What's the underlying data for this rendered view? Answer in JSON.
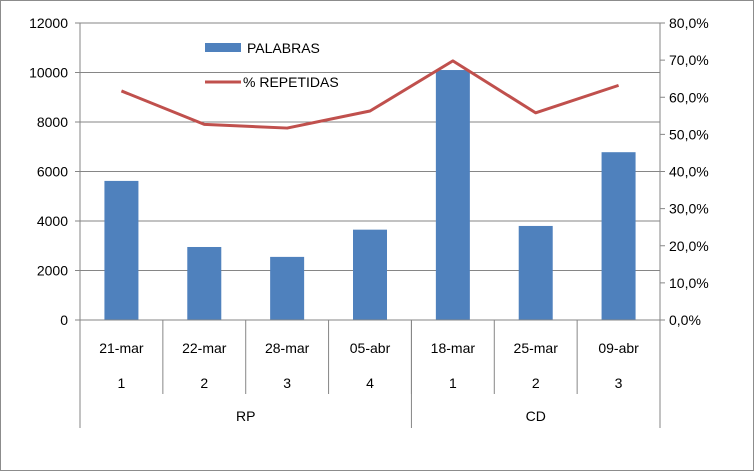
{
  "chart_data": {
    "type": "bar",
    "categories": [
      "21-mar",
      "22-mar",
      "28-mar",
      "05-abr",
      "18-mar",
      "25-mar",
      "09-abr"
    ],
    "sub_categories": [
      "1",
      "2",
      "3",
      "4",
      "1",
      "2",
      "3"
    ],
    "groups": [
      {
        "label": "RP",
        "span": 4
      },
      {
        "label": "CD",
        "span": 3
      }
    ],
    "series": [
      {
        "name": "PALABRAS",
        "type": "bar",
        "axis": "left",
        "color": "#4F81BD",
        "values": [
          5620,
          2950,
          2550,
          3650,
          10100,
          3800,
          6780
        ]
      },
      {
        "name": "% REPETIDAS",
        "type": "line",
        "axis": "right",
        "color": "#C0504D",
        "values": [
          61.7,
          52.7,
          51.7,
          56.3,
          69.8,
          55.8,
          63.2
        ]
      }
    ],
    "y_left": {
      "min": 0,
      "max": 12000,
      "step": 2000,
      "tick_labels": [
        "0",
        "2000",
        "4000",
        "6000",
        "8000",
        "10000",
        "12000"
      ]
    },
    "y_right": {
      "min": 0,
      "max": 80,
      "step": 10,
      "tick_labels": [
        "0,0%",
        "10,0%",
        "20,0%",
        "30,0%",
        "40,0%",
        "50,0%",
        "60,0%",
        "70,0%",
        "80,0%"
      ]
    },
    "grid": true,
    "legend_position": "top-left inside plot",
    "title": "",
    "xlabel": "",
    "ylabel": ""
  }
}
